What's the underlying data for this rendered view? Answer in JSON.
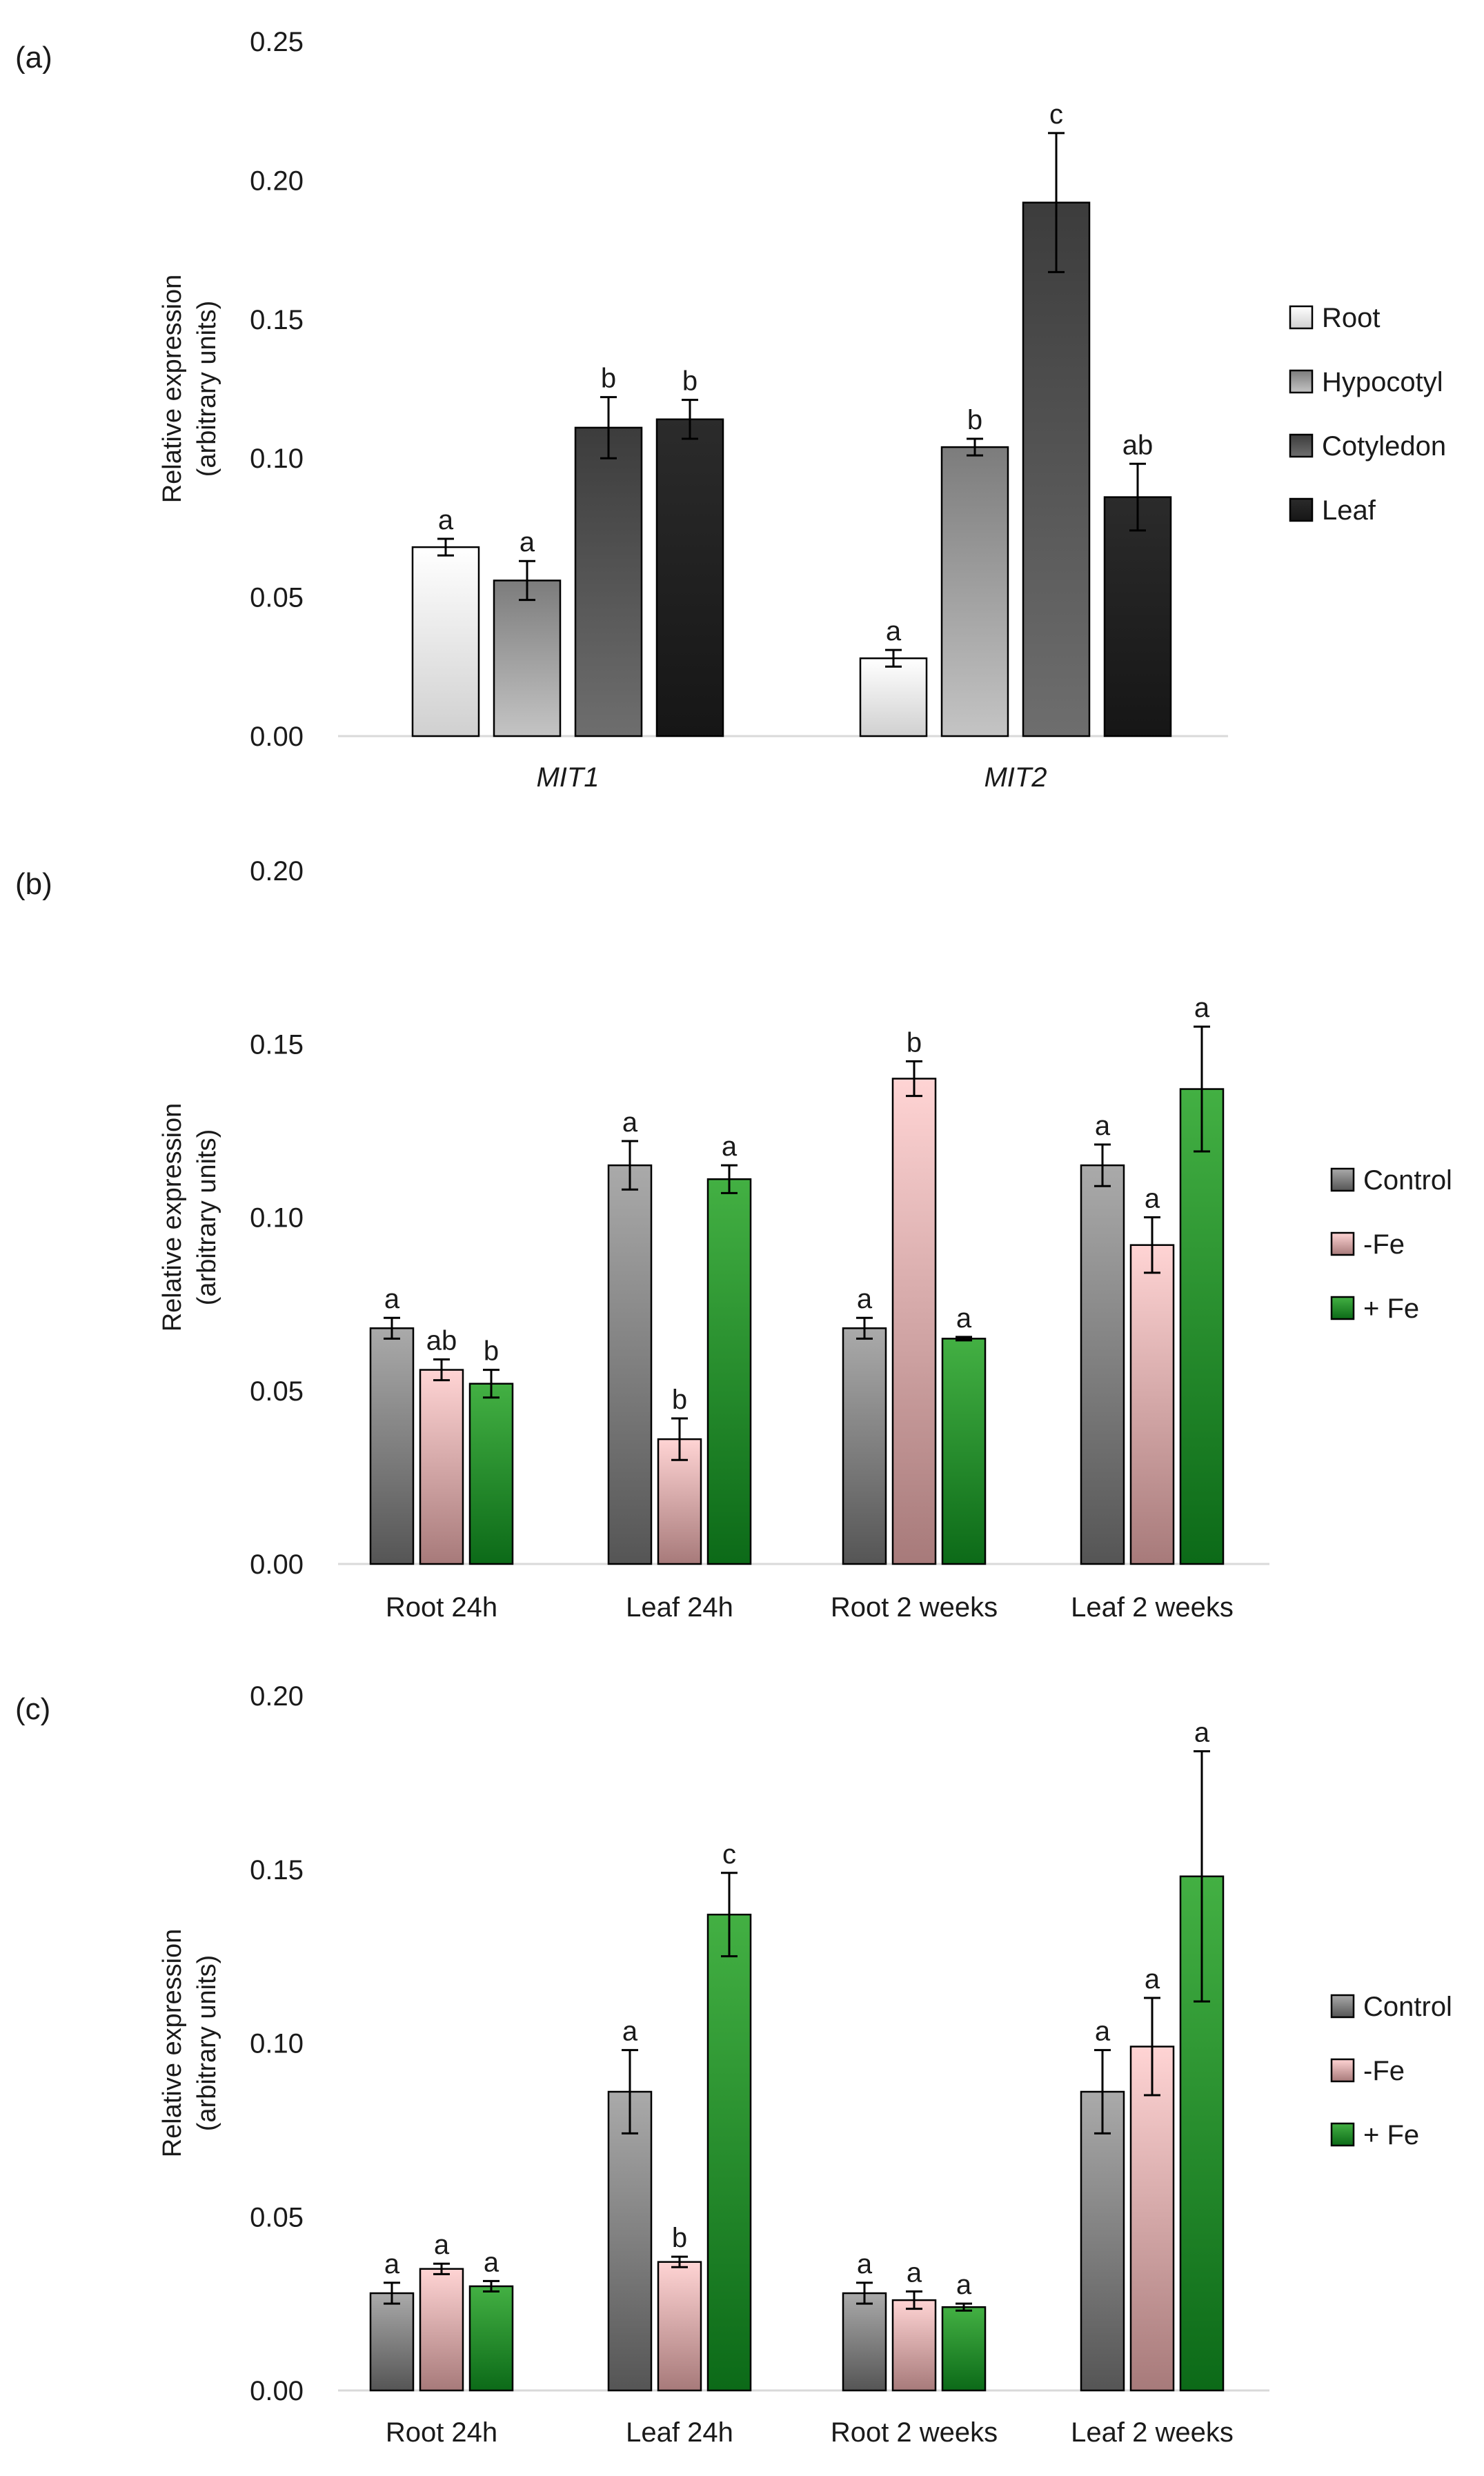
{
  "chart_data": [
    {
      "panel": "(a)",
      "type": "bar",
      "ylabel_line1": "Relative expression",
      "ylabel_line2": "(arbitrary units)",
      "ylim": [
        0,
        0.25
      ],
      "yticks": [
        "0.00",
        "0.05",
        "0.10",
        "0.15",
        "0.20",
        "0.25"
      ],
      "categories": [
        "MIT1",
        "MIT2"
      ],
      "category_italic": true,
      "legend": [
        "Root",
        "Hypocotyl",
        "Cotyledon",
        "Leaf"
      ],
      "series": [
        {
          "name": "Root",
          "color_top": "#ffffff",
          "color_bottom": "#d0d0d0",
          "values": [
            0.068,
            0.028
          ],
          "errors": [
            0.003,
            0.003
          ],
          "sig": [
            "a",
            "a"
          ]
        },
        {
          "name": "Hypocotyl",
          "color_top": "#7c7c7c",
          "color_bottom": "#c4c4c4",
          "values": [
            0.056,
            0.104
          ],
          "errors": [
            0.007,
            0.003
          ],
          "sig": [
            "a",
            "b"
          ]
        },
        {
          "name": "Cotyledon",
          "color_top": "#3c3c3c",
          "color_bottom": "#6e6e6e",
          "values": [
            0.111,
            0.192
          ],
          "errors": [
            0.011,
            0.025
          ],
          "sig": [
            "b",
            "c"
          ]
        },
        {
          "name": "Leaf",
          "color_top": "#2b2b2b",
          "color_bottom": "#161616",
          "values": [
            0.114,
            0.086
          ],
          "errors": [
            0.007,
            0.012
          ],
          "sig": [
            "b",
            "ab"
          ]
        }
      ]
    },
    {
      "panel": "(b)",
      "type": "bar",
      "ylabel_line1": "Relative expression",
      "ylabel_line2": "(arbitrary units)",
      "ylim": [
        0,
        0.2
      ],
      "yticks": [
        "0.00",
        "0.05",
        "0.10",
        "0.15",
        "0.20"
      ],
      "categories": [
        "Root 24h",
        "Leaf 24h",
        "Root 2 weeks",
        "Leaf 2 weeks"
      ],
      "category_italic": false,
      "legend": [
        "Control",
        "-Fe",
        "+ Fe"
      ],
      "series": [
        {
          "name": "Control",
          "color_top": "#aaaaaa",
          "color_bottom": "#555555",
          "values": [
            0.068,
            0.115,
            0.068,
            0.115
          ],
          "errors": [
            0.003,
            0.007,
            0.003,
            0.006
          ],
          "sig": [
            "a",
            "a",
            "a",
            "a"
          ]
        },
        {
          "name": "-Fe",
          "color_top": "#ffd4d4",
          "color_bottom": "#a77a7a",
          "values": [
            0.056,
            0.036,
            0.14,
            0.092
          ],
          "errors": [
            0.003,
            0.006,
            0.005,
            0.008
          ],
          "sig": [
            "ab",
            "b",
            "b",
            "a"
          ]
        },
        {
          "name": "+ Fe",
          "color_top": "#43b043",
          "color_bottom": "#0c6a18",
          "values": [
            0.052,
            0.111,
            0.065,
            0.137
          ],
          "errors": [
            0.004,
            0.004,
            0.0005,
            0.018
          ],
          "sig": [
            "b",
            "a",
            "a",
            "a"
          ]
        }
      ]
    },
    {
      "panel": "(c)",
      "type": "bar",
      "ylabel_line1": "Relative expression",
      "ylabel_line2": "(arbitrary units)",
      "ylim": [
        0,
        0.2
      ],
      "yticks": [
        "0.00",
        "0.05",
        "0.10",
        "0.15",
        "0.20"
      ],
      "categories": [
        "Root 24h",
        "Leaf 24h",
        "Root 2 weeks",
        "Leaf 2 weeks"
      ],
      "category_italic": false,
      "legend": [
        "Control",
        "-Fe",
        "+ Fe"
      ],
      "series": [
        {
          "name": "Control",
          "color_top": "#aaaaaa",
          "color_bottom": "#555555",
          "values": [
            0.028,
            0.086,
            0.028,
            0.086
          ],
          "errors": [
            0.003,
            0.012,
            0.003,
            0.012
          ],
          "sig": [
            "a",
            "a",
            "a",
            "a"
          ]
        },
        {
          "name": "-Fe",
          "color_top": "#ffd4d4",
          "color_bottom": "#a77a7a",
          "values": [
            0.035,
            0.037,
            0.026,
            0.099
          ],
          "errors": [
            0.0015,
            0.0015,
            0.0025,
            0.014
          ],
          "sig": [
            "a",
            "b",
            "a",
            "a"
          ]
        },
        {
          "name": "+ Fe",
          "color_top": "#43b043",
          "color_bottom": "#0c6a18",
          "values": [
            0.03,
            0.137,
            0.024,
            0.148
          ],
          "errors": [
            0.0015,
            0.012,
            0.001,
            0.036
          ],
          "sig": [
            "a",
            "c",
            "a",
            "a"
          ]
        }
      ]
    }
  ]
}
